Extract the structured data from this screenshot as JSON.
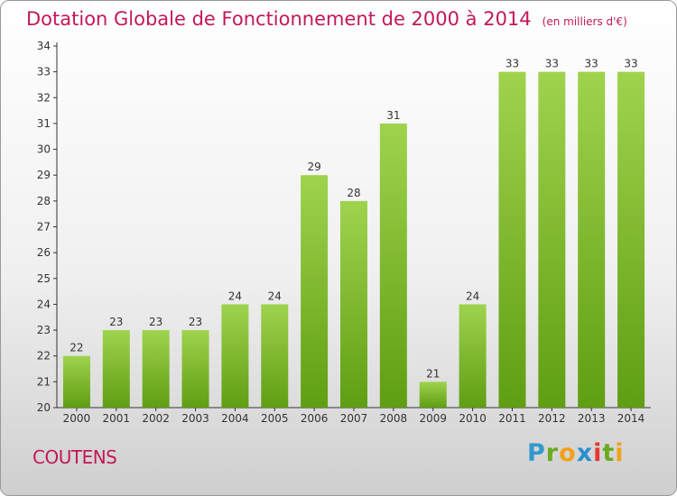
{
  "title": "Dotation Globale de Fonctionnement de 2000 à 2014",
  "subtitle": "(en milliers d'€)",
  "commune": "COUTENS",
  "logo": {
    "text": "Proxiti",
    "letters": [
      "P",
      "r",
      "o",
      "x",
      "i",
      "t",
      "i"
    ]
  },
  "colors": {
    "title": "#c2185b",
    "bar_top": "#9fd34e",
    "bar_bottom": "#5f9e12",
    "axis": "#333333"
  },
  "chart_data": {
    "type": "bar",
    "categories": [
      "2000",
      "2001",
      "2002",
      "2003",
      "2004",
      "2005",
      "2006",
      "2007",
      "2008",
      "2009",
      "2010",
      "2011",
      "2012",
      "2013",
      "2014"
    ],
    "values": [
      22,
      23,
      23,
      23,
      24,
      24,
      29,
      28,
      31,
      21,
      24,
      33,
      33,
      33,
      33
    ],
    "title": "Dotation Globale de Fonctionnement de 2000 à 2014",
    "subtitle": "(en milliers d'€)",
    "xlabel": "",
    "ylabel": "",
    "ylim": [
      20,
      34
    ],
    "yticks": [
      20,
      21,
      22,
      23,
      24,
      25,
      26,
      27,
      28,
      29,
      30,
      31,
      32,
      33,
      34
    ],
    "grid": false,
    "legend": "none"
  }
}
